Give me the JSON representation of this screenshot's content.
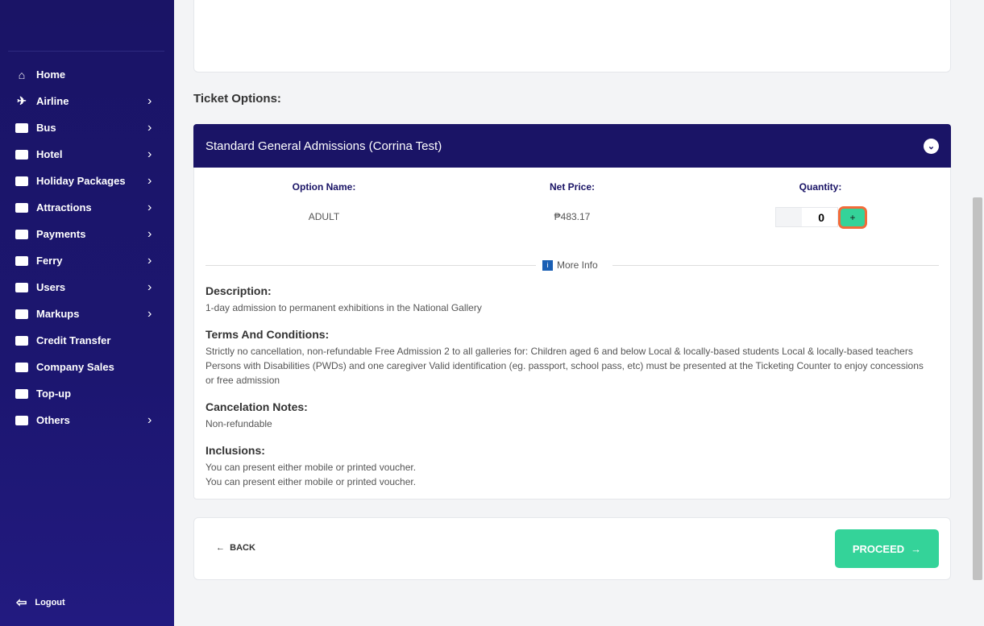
{
  "sidebar": {
    "items": [
      {
        "label": "Home",
        "icon": "home-icon",
        "chevron": false
      },
      {
        "label": "Airline",
        "icon": "plane-icon",
        "chevron": true
      },
      {
        "label": "Bus",
        "icon": "bus-icon",
        "chevron": true
      },
      {
        "label": "Hotel",
        "icon": "bed-icon",
        "chevron": true
      },
      {
        "label": "Holiday Packages",
        "icon": "suitcase-icon",
        "chevron": true
      },
      {
        "label": "Attractions",
        "icon": "ticket-icon",
        "chevron": true
      },
      {
        "label": "Payments",
        "icon": "credit-card-icon",
        "chevron": true
      },
      {
        "label": "Ferry",
        "icon": "ferry-icon",
        "chevron": true
      },
      {
        "label": "Users",
        "icon": "users-icon",
        "chevron": true
      },
      {
        "label": "Markups",
        "icon": "money-icon",
        "chevron": true
      },
      {
        "label": "Credit Transfer",
        "icon": "money-transfer-icon",
        "chevron": false
      },
      {
        "label": "Company Sales",
        "icon": "coins-icon",
        "chevron": false
      },
      {
        "label": "Top-up",
        "icon": "piggy-bank-icon",
        "chevron": false
      },
      {
        "label": "Others",
        "icon": "passport-icon",
        "chevron": true
      }
    ],
    "logout": "Logout"
  },
  "main": {
    "section_title": "Ticket Options:",
    "option": {
      "title": "Standard General Admissions (Corrina Test)",
      "headers": {
        "name": "Option Name:",
        "price": "Net Price:",
        "qty": "Quantity:"
      },
      "row": {
        "name": "ADULT",
        "price": "₱483.17",
        "qty": "0"
      },
      "more_info": "More Info",
      "description_h": "Description:",
      "description": "1-day admission to permanent exhibitions in the National Gallery",
      "terms_h": "Terms And Conditions:",
      "terms": "Strictly no cancellation, non-refundable Free Admission 2 to all galleries for: Children aged 6 and below Local & locally-based students Local & locally-based teachers Persons with Disabilities (PWDs) and one caregiver Valid identification (eg. passport, school pass, etc) must be presented at the Ticketing Counter to enjoy concessions or free admission",
      "cancel_h": "Cancelation Notes:",
      "cancel": "Non-refundable",
      "incl_h": "Inclusions:",
      "incl1": "You can present either mobile or printed voucher.",
      "incl2": "You can present either mobile or printed voucher."
    },
    "back": "BACK",
    "proceed": "PROCEED"
  },
  "colors": {
    "sidebar": "#1a1466",
    "accent": "#34d399",
    "focus": "#f26b3a"
  }
}
